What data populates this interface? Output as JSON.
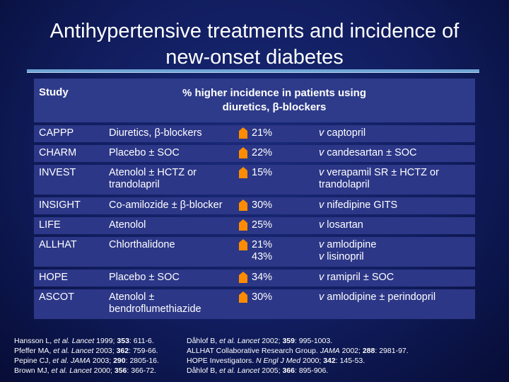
{
  "title_line1": "Antihypertensive treatments and incidence of",
  "title_line2": "new-onset diabetes",
  "header": {
    "study": "Study",
    "pct_line1": "% higher incidence in patients using",
    "pct_line2": "diuretics, β-blockers"
  },
  "arrow_icon": "up-arrow-icon",
  "arrow_color": "#ff8c00",
  "rows": [
    {
      "study": "CAPPP",
      "treat1": "Diuretics, β-blockers",
      "treat2": "",
      "pct1": "21%",
      "pct2": "",
      "comp1_v": "v",
      "comp1": " captopril",
      "comp2_v": "",
      "comp2": ""
    },
    {
      "study": "CHARM",
      "treat1": "Placebo ± SOC",
      "treat2": "",
      "pct1": "22%",
      "pct2": "",
      "comp1_v": "v",
      "comp1": " candesartan ± SOC",
      "comp2_v": "",
      "comp2": ""
    },
    {
      "study": "INVEST",
      "treat1": "Atenolol ± HCTZ or",
      "treat2": "trandolapril",
      "pct1": "15%",
      "pct2": "",
      "comp1_v": "v",
      "comp1": " verapamil SR ± HCTZ or",
      "comp2_v": "",
      "comp2": "trandolapril"
    },
    {
      "study": "INSIGHT",
      "treat1": "Co-amilozide ± β-blocker",
      "treat2": "",
      "pct1": "30%",
      "pct2": "",
      "comp1_v": "v",
      "comp1": " nifedipine GITS",
      "comp2_v": "",
      "comp2": ""
    },
    {
      "study": "LIFE",
      "treat1": "Atenolol",
      "treat2": "",
      "pct1": "25%",
      "pct2": "",
      "comp1_v": "v",
      "comp1": " losartan",
      "comp2_v": "",
      "comp2": ""
    },
    {
      "study": "ALLHAT",
      "treat1": "Chlorthalidone",
      "treat2": "",
      "pct1": "21%",
      "pct2": "43%",
      "comp1_v": "v",
      "comp1": " amlodipine",
      "comp2_v": "v",
      "comp2": " lisinopril"
    },
    {
      "study": "HOPE",
      "treat1": "Placebo ± SOC",
      "treat2": "",
      "pct1": "34%",
      "pct2": "",
      "comp1_v": "v",
      "comp1": " ramipril ± SOC",
      "comp2_v": "",
      "comp2": ""
    },
    {
      "study": "ASCOT",
      "treat1": "Atenolol ±",
      "treat2": "bendroflumethiazide",
      "pct1": "30%",
      "pct2": "",
      "comp1_v": "v",
      "comp1": " amlodipine ± perindopril",
      "comp2_v": "",
      "comp2": ""
    }
  ],
  "refs_left": [
    {
      "a": "Hansson L, ",
      "em": "et al. Lancet",
      "b": " 1999; ",
      "bold": "353",
      "c": ": 611-6."
    },
    {
      "a": "Pfeffer MA, ",
      "em": "et al. Lancet",
      "b": " 2003; ",
      "bold": "362",
      "c": ": 759-66."
    },
    {
      "a": "Pepine CJ, ",
      "em": "et al. JAMA",
      "b": " 2003; ",
      "bold": "290",
      "c": ": 2805-16."
    },
    {
      "a": "Brown MJ, ",
      "em": "et al. Lancet",
      "b": " 2000; ",
      "bold": "356",
      "c": ": 366-72."
    }
  ],
  "refs_right": [
    {
      "a": "Dåhlof B, ",
      "em": "et al. Lancet",
      "b": " 2002; ",
      "bold": "359",
      "c": ": 995-1003."
    },
    {
      "a": "ALLHAT Collaborative Research Group. ",
      "em": "JAMA",
      "b": " 2002; ",
      "bold": "288",
      "c": ": 2981-97."
    },
    {
      "a": "HOPE Investigators. ",
      "em": "N Engl J Med",
      "b": " 2000; ",
      "bold": "342",
      "c": ": 145-53."
    },
    {
      "a": "Dåhlof B, ",
      "em": "et al. Lancet",
      "b": " 2005; ",
      "bold": "366",
      "c": ": 895-906."
    }
  ]
}
